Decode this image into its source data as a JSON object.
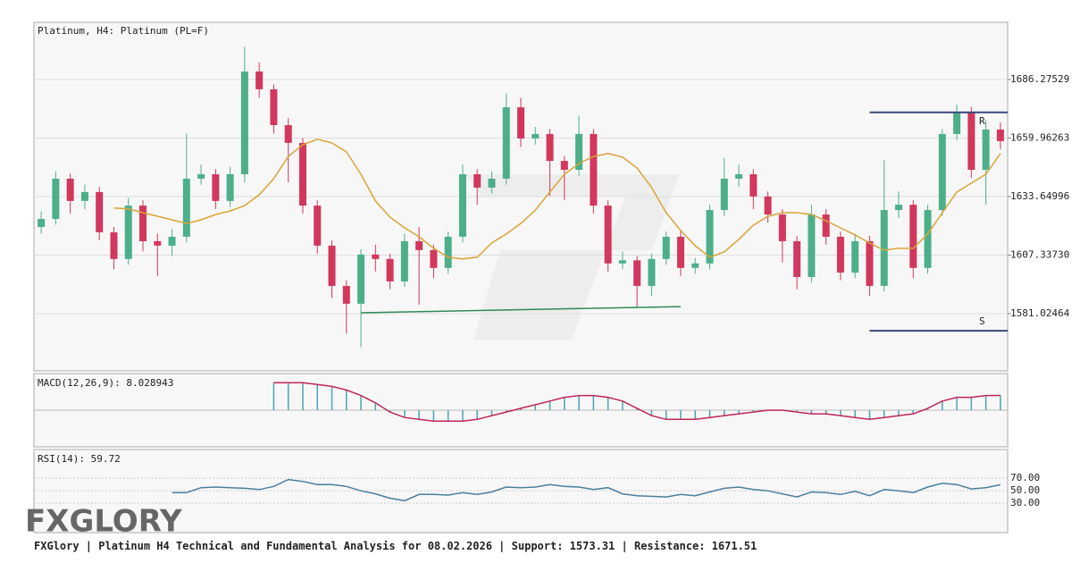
{
  "chart_data": {
    "type": "candlestick",
    "title": "Platinum, H4: Platinum (PL=F)",
    "brand": "FXGLORY",
    "footer_prefix": "FXGlory | Platinum H4 Technical and Fundamental Analysis for 08.02.2026 |",
    "support_label": "Support:",
    "separator": "|",
    "resistance_label": "Resistance:",
    "support": 1573.31,
    "resistance": 1671.51,
    "support_mark": "S",
    "resistance_mark": "R",
    "ylim": [
      1555.3,
      1712.0
    ],
    "yticks": [
      1686.27529,
      1659.96263,
      1633.64996,
      {
        "value": 1607.3373,
        "label": "1607.33730"
      },
      1581.02464
    ],
    "grid": true,
    "up_color": "#4caf8a",
    "down_color": "#d2375d",
    "ma_color": "#d9a537",
    "candles": [
      [
        1620.0,
        1627.0,
        1617.0,
        1623.6
      ],
      [
        1623.6,
        1645.0,
        1621.0,
        1641.7
      ],
      [
        1641.7,
        1644.0,
        1626.0,
        1631.7
      ],
      [
        1631.7,
        1639.0,
        1628.0,
        1635.7
      ],
      [
        1635.7,
        1638.0,
        1614.0,
        1617.6
      ],
      [
        1617.6,
        1620.0,
        1601.0,
        1605.6
      ],
      [
        1605.6,
        1633.0,
        1603.0,
        1629.6
      ],
      [
        1629.6,
        1632.0,
        1609.0,
        1613.6
      ],
      [
        1613.6,
        1617.0,
        1598.0,
        1611.6
      ],
      [
        1611.6,
        1619.0,
        1607.0,
        1615.6
      ],
      [
        1615.6,
        1662.0,
        1613.0,
        1641.7
      ],
      [
        1641.7,
        1648.0,
        1639.0,
        1643.7
      ],
      [
        1643.7,
        1646.0,
        1628.0,
        1631.7
      ],
      [
        1631.7,
        1647.0,
        1629.0,
        1643.7
      ],
      [
        1643.7,
        1701.0,
        1640.0,
        1689.9
      ],
      [
        1689.9,
        1694.0,
        1678.0,
        1681.9
      ],
      [
        1681.9,
        1684.0,
        1662.0,
        1665.8
      ],
      [
        1665.8,
        1669.0,
        1640.0,
        1657.8
      ],
      [
        1657.8,
        1660.0,
        1626.0,
        1629.6
      ],
      [
        1629.6,
        1632.0,
        1608.0,
        1611.6
      ],
      [
        1611.6,
        1614.0,
        1588.0,
        1593.5
      ],
      [
        1593.5,
        1596.0,
        1572.0,
        1585.5
      ],
      [
        1585.5,
        1610.0,
        1566.0,
        1607.6
      ],
      [
        1607.6,
        1612.0,
        1600.0,
        1605.6
      ],
      [
        1605.6,
        1608.0,
        1592.0,
        1595.5
      ],
      [
        1595.5,
        1617.0,
        1593.0,
        1613.6
      ],
      [
        1613.6,
        1620.0,
        1585.0,
        1609.6
      ],
      [
        1609.6,
        1612.0,
        1597.0,
        1601.6
      ],
      [
        1601.6,
        1618.0,
        1599.0,
        1615.6
      ],
      [
        1615.6,
        1648.0,
        1613.0,
        1643.7
      ],
      [
        1643.7,
        1646.0,
        1630.0,
        1637.7
      ],
      [
        1637.7,
        1645.0,
        1635.0,
        1641.7
      ],
      [
        1641.7,
        1680.0,
        1639.0,
        1673.8
      ],
      [
        1673.8,
        1678.0,
        1656.0,
        1659.8
      ],
      [
        1659.8,
        1665.0,
        1657.0,
        1661.8
      ],
      [
        1661.8,
        1664.0,
        1634.0,
        1649.7
      ],
      [
        1649.7,
        1652.0,
        1632.0,
        1645.7
      ],
      [
        1645.7,
        1670.0,
        1643.0,
        1661.8
      ],
      [
        1661.8,
        1664.0,
        1626.0,
        1629.6
      ],
      [
        1629.6,
        1632.0,
        1600.0,
        1603.6
      ],
      [
        1603.6,
        1609.0,
        1601.0,
        1605.0
      ],
      [
        1605.0,
        1607.0,
        1584.0,
        1593.5
      ],
      [
        1593.5,
        1608.0,
        1589.0,
        1605.6
      ],
      [
        1605.6,
        1618.0,
        1603.0,
        1615.6
      ],
      [
        1615.6,
        1618.0,
        1598.0,
        1601.6
      ],
      [
        1601.6,
        1606.0,
        1599.0,
        1603.6
      ],
      [
        1603.6,
        1630.0,
        1601.0,
        1627.6
      ],
      [
        1627.6,
        1651.0,
        1625.0,
        1641.7
      ],
      [
        1641.7,
        1648.0,
        1638.0,
        1643.7
      ],
      [
        1643.7,
        1646.0,
        1628.0,
        1633.7
      ],
      [
        1633.7,
        1636.0,
        1622.0,
        1625.6
      ],
      [
        1625.6,
        1628.0,
        1604.0,
        1613.6
      ],
      [
        1613.6,
        1616.0,
        1592.0,
        1597.5
      ],
      [
        1597.5,
        1630.0,
        1595.0,
        1625.6
      ],
      [
        1625.6,
        1628.0,
        1612.0,
        1615.6
      ],
      [
        1615.6,
        1618.0,
        1596.0,
        1599.5
      ],
      [
        1599.5,
        1617.0,
        1597.0,
        1613.6
      ],
      [
        1613.6,
        1616.0,
        1589.0,
        1593.5
      ],
      [
        1593.5,
        1650.0,
        1591.0,
        1627.6
      ],
      [
        1627.6,
        1636.0,
        1624.0,
        1630.0
      ],
      [
        1630.0,
        1632.0,
        1597.0,
        1601.6
      ],
      [
        1601.6,
        1630.0,
        1599.0,
        1627.6
      ],
      [
        1627.6,
        1664.0,
        1625.0,
        1661.8
      ],
      [
        1661.8,
        1675.0,
        1659.0,
        1671.8
      ],
      [
        1671.8,
        1674.0,
        1642.0,
        1645.7
      ],
      [
        1645.7,
        1668.0,
        1630.0,
        1663.8
      ],
      [
        1663.8,
        1667.0,
        1655.0,
        1658.6
      ]
    ],
    "ma": [
      null,
      null,
      null,
      null,
      null,
      1628.5,
      1628.1,
      1626.4,
      1624.8,
      1623.2,
      1621.6,
      1623.2,
      1625.6,
      1627.2,
      1629.6,
      1634.5,
      1641.7,
      1651.7,
      1657.0,
      1659.4,
      1657.8,
      1653.8,
      1643.7,
      1631.7,
      1624.4,
      1619.6,
      1615.6,
      1610.4,
      1606.4,
      1605.6,
      1606.4,
      1612.8,
      1616.8,
      1621.6,
      1627.6,
      1635.7,
      1643.7,
      1648.5,
      1651.7,
      1653.0,
      1651.4,
      1646.5,
      1637.7,
      1626.4,
      1618.4,
      1611.6,
      1606.4,
      1608.8,
      1614.4,
      1620.8,
      1624.8,
      1626.4,
      1626.4,
      1625.6,
      1622.8,
      1619.6,
      1616.4,
      1612.8,
      1609.6,
      1610.4,
      1610.4,
      1616.8,
      1626.4,
      1635.7,
      1639.7,
      1643.7,
      1653.0
    ],
    "trendline": {
      "x": [
        22,
        44
      ],
      "values": [
        1581.4,
        1584.2
      ],
      "color": "#2e8b57"
    },
    "sr_start": 57,
    "macd": {
      "label": "MACD(12,26,9):",
      "ylim": [
        -20,
        20
      ],
      "bar_color": "#4aa3b5",
      "line_color": "#c2275a",
      "values": [
        null,
        null,
        null,
        null,
        null,
        null,
        null,
        null,
        null,
        null,
        null,
        null,
        null,
        null,
        null,
        null,
        15,
        15,
        15,
        14,
        13,
        11,
        8,
        4,
        -1,
        -4,
        -5,
        -6,
        -6,
        -6,
        -5,
        -3,
        -1,
        1,
        3,
        5,
        7,
        8,
        8,
        7,
        5,
        1,
        -3,
        -5,
        -5,
        -5,
        -4,
        -3,
        -2,
        -1,
        0,
        0,
        -1,
        -2,
        -2,
        -3,
        -4,
        -5,
        -4,
        -3,
        -2,
        1,
        5,
        7,
        7,
        8,
        8.028943
      ]
    },
    "rsi": {
      "label": "RSI(14):",
      "ylim": [
        -17,
        116
      ],
      "yticks": [
        {
          "value": 70,
          "label": "70.00"
        },
        {
          "value": 50,
          "label": "50.00"
        },
        {
          "value": 30,
          "label": "30.00"
        }
      ],
      "color": "#4a7fa0",
      "values": [
        null,
        null,
        null,
        null,
        null,
        null,
        null,
        null,
        null,
        47,
        47,
        55,
        56,
        55,
        54,
        52,
        57,
        68,
        65,
        60,
        60,
        57,
        50,
        45,
        38,
        34,
        44,
        44,
        43,
        47,
        44,
        48,
        56,
        55,
        56,
        60,
        57,
        56,
        52,
        55,
        45,
        42,
        41,
        40,
        44,
        42,
        48,
        54,
        56,
        52,
        50,
        45,
        40,
        48,
        47,
        44,
        49,
        42,
        52,
        50,
        47,
        56,
        62,
        60,
        53,
        55,
        59.72
      ]
    }
  }
}
